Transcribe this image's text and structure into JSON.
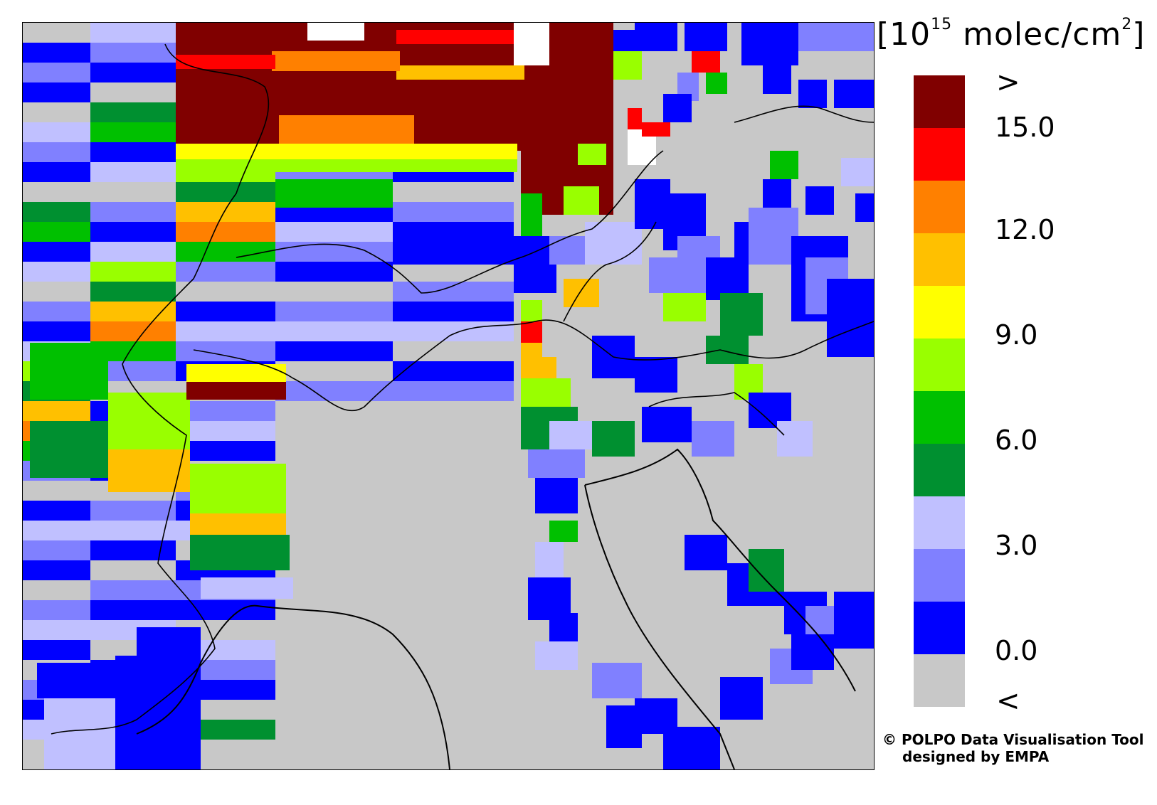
{
  "unit_label": {
    "base": "[10",
    "exponent": "15",
    "rest": " molec/cm",
    "rest_exp": "2",
    "close": "]"
  },
  "legend": {
    "top_symbol": ">",
    "bottom_symbol": "<",
    "ticks": [
      "15.0",
      "12.0",
      "9.0",
      "6.0",
      "3.0",
      "0.0"
    ],
    "colors": [
      "#800000",
      "#ff0000",
      "#ff8000",
      "#ffc000",
      "#ffff00",
      "#99ff00",
      "#00c000",
      "#009030",
      "#c0c0ff",
      "#8080ff",
      "#0000ff",
      "#c8c8c8"
    ]
  },
  "credit": {
    "line1": "© POLPO Data Visualisation Tool",
    "line2": "designed by EMPA"
  }
}
